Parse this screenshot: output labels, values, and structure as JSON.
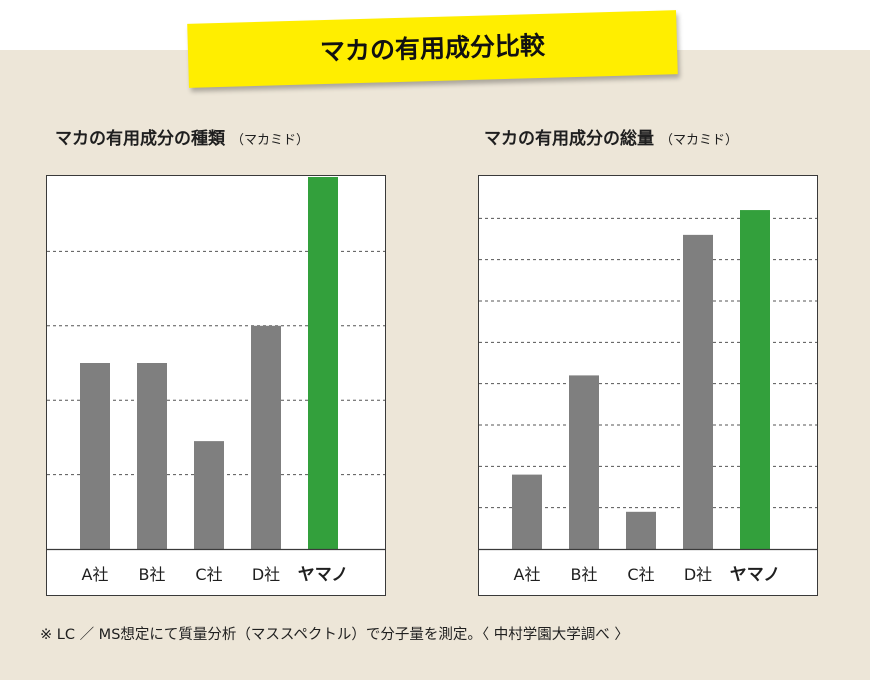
{
  "banner": {
    "title": "マカの有用成分比較"
  },
  "colors": {
    "banner": "#ffee00",
    "background": "#ede6d8",
    "bar_default": "#7f7f7f",
    "bar_highlight": "#33a03c"
  },
  "chart_data": [
    {
      "type": "bar",
      "title": "マカの有用成分の種類",
      "subtitle": "（マカミド）",
      "categories": [
        "A社",
        "B社",
        "C社",
        "D社",
        "ヤマノ"
      ],
      "values": [
        2.5,
        2.5,
        1.45,
        3.0,
        5.0
      ],
      "ylim": [
        0,
        5
      ],
      "gridlines": [
        1,
        2,
        3,
        4
      ],
      "grid": true,
      "highlight_index": 4
    },
    {
      "type": "bar",
      "title": "マカの有用成分の総量",
      "subtitle": "（マカミド）",
      "categories": [
        "A社",
        "B社",
        "C社",
        "D社",
        "ヤマノ"
      ],
      "values": [
        1.8,
        4.2,
        0.9,
        7.6,
        8.2
      ],
      "ylim": [
        0,
        9
      ],
      "gridlines": [
        1,
        2,
        3,
        4,
        5,
        6,
        7,
        8
      ],
      "grid": true,
      "highlight_index": 4
    }
  ],
  "footnote": "※ LC ／ MS想定にて質量分析（マススペクトル）で分子量を測定。〈 中村学園大学調べ 〉"
}
